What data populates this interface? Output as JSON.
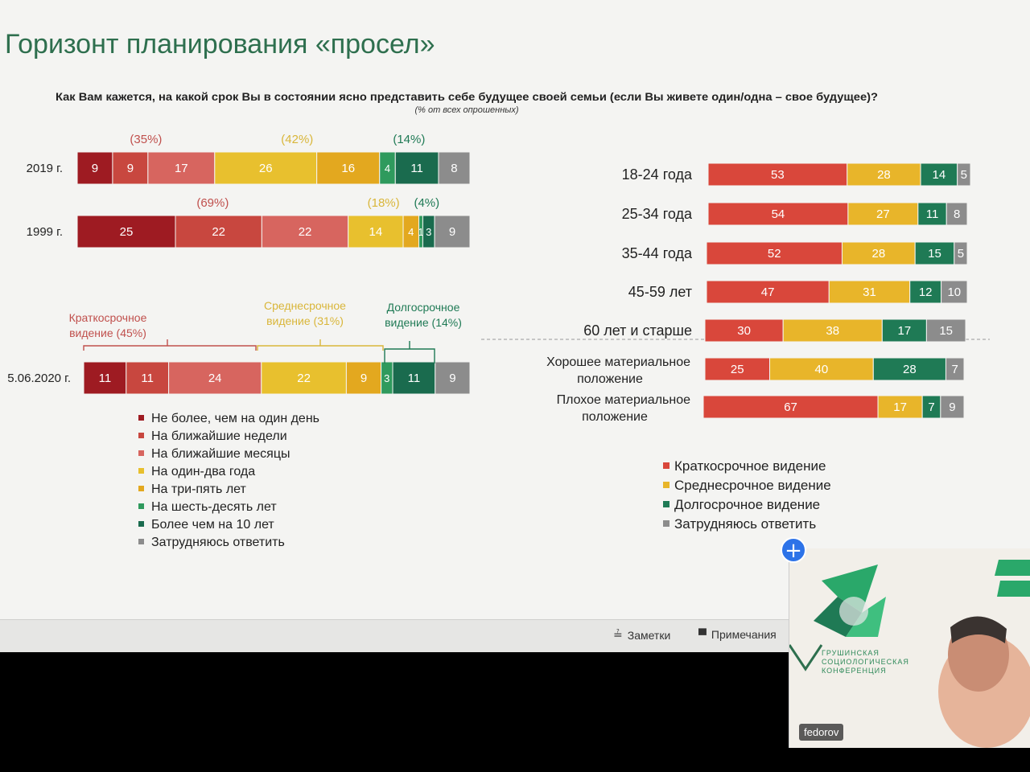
{
  "slide": {
    "title": "Горизонт планирования «просел»",
    "question": "Как Вам кажется, на какой срок Вы в состоянии ясно представить себе будущее своей семьи (если Вы живете один/одна – свое будущее)?",
    "note": "(% от всех опрошенных)"
  },
  "colors": {
    "c1": "#9e1b22",
    "c2": "#c8473f",
    "c3": "#d7655f",
    "c4": "#e8c02e",
    "c5": "#e3a81f",
    "c6": "#2f9a5d",
    "c7": "#1a6b4e",
    "c8": "#8c8c8c",
    "short": "#d9473b",
    "mid": "#e8b52a",
    "long": "#1f7a55",
    "dk": "#8c8c8c",
    "bracket_short": "#c0504d",
    "bracket_mid": "#d9b63a",
    "bracket_long": "#1f7a55"
  },
  "chart_data": [
    {
      "type": "bar",
      "orientation": "horizontal-stacked",
      "categories": [
        "2019 г.",
        "1999 г.",
        "5.06.2020 г."
      ],
      "series": [
        {
          "name": "Не более, чем на один день",
          "values": [
            9,
            25,
            11
          ]
        },
        {
          "name": "На ближайшие недели",
          "values": [
            9,
            22,
            11
          ]
        },
        {
          "name": "На ближайшие месяцы",
          "values": [
            17,
            22,
            24
          ]
        },
        {
          "name": "На один-два года",
          "values": [
            26,
            14,
            22
          ]
        },
        {
          "name": "На три-пять лет",
          "values": [
            16,
            4,
            9
          ]
        },
        {
          "name": "На шесть-десять лет",
          "values": [
            4,
            1,
            3
          ]
        },
        {
          "name": "Более чем на 10 лет",
          "values": [
            11,
            3,
            11
          ]
        },
        {
          "name": "Затрудняюсь ответить",
          "values": [
            8,
            9,
            9
          ]
        }
      ],
      "group_labels": {
        "2019 г.": [
          "(35%)",
          "(42%)",
          "(14%)"
        ],
        "1999 г.": [
          "(69%)",
          "(18%)",
          "(4%)"
        ]
      },
      "brackets": [
        "Краткосрочное видение (45%)",
        "Среднесрочное видение (31%)",
        "Долгосрочное видение (14%)"
      ]
    },
    {
      "type": "bar",
      "orientation": "horizontal-stacked",
      "categories": [
        "18-24 года",
        "25-34 года",
        "35-44 года",
        "45-59 лет",
        "60 лет и старше",
        "Хорошее материальное положение",
        "Плохое материальное положение"
      ],
      "series": [
        {
          "name": "Краткосрочное видение",
          "values": [
            53,
            54,
            52,
            47,
            30,
            25,
            67
          ]
        },
        {
          "name": "Среднесрочное видение",
          "values": [
            28,
            27,
            28,
            31,
            38,
            40,
            17
          ]
        },
        {
          "name": "Долгосрочное видение",
          "values": [
            14,
            11,
            15,
            12,
            17,
            28,
            7
          ]
        },
        {
          "name": "Затрудняюсь ответить",
          "values": [
            5,
            8,
            5,
            10,
            15,
            7,
            9
          ]
        }
      ]
    }
  ],
  "left_labels": {
    "bracket_short_1": "Краткосрочное",
    "bracket_short_2": "видение (45%)",
    "bracket_mid_1": "Среднесрочное",
    "bracket_mid_2": "видение (31%)",
    "bracket_long_1": "Долгосрочное",
    "bracket_long_2": "видение (14%)"
  },
  "right_labels": {
    "good_1": "Хорошее материальное",
    "good_2": "положение",
    "bad_1": "Плохое материальное",
    "bad_2": "положение"
  },
  "toolbar": {
    "notes_label": "Заметки",
    "comments_label": "Примечания"
  },
  "video": {
    "participant": "fedorov",
    "logo_text_1": "ГРУШИНСКАЯ",
    "logo_text_2": "СОЦИОЛОГИЧЕСКАЯ",
    "logo_text_3": "КОНФЕРЕНЦИЯ",
    "add_icon": "plus-icon"
  }
}
